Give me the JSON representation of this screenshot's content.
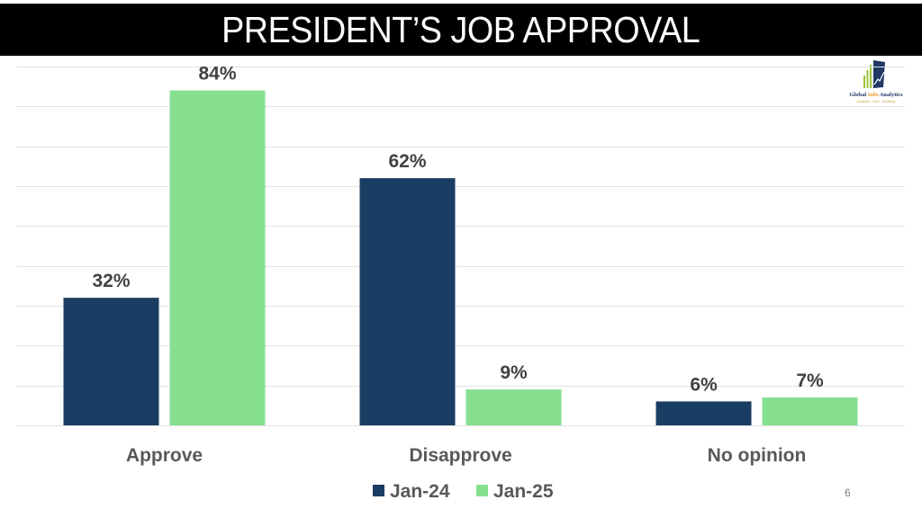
{
  "header": {
    "title": "PRESIDENT’S JOB APPROVAL"
  },
  "logo": {
    "brand_part1": "Global ",
    "brand_highlight": "Info",
    "brand_part2": " Analytics",
    "tagline": "Analytics · Polls · Modeling",
    "icon": "bar-chart-arrow-logo-icon"
  },
  "page_number": "6",
  "colors": {
    "jan24": "#1a3d63",
    "jan25": "#86e090",
    "grid": "#e3e3e3"
  },
  "chart_data": {
    "type": "bar",
    "title": "PRESIDENT’S JOB APPROVAL",
    "categories": [
      "Approve",
      "Disapprove",
      "No opinion"
    ],
    "series": [
      {
        "name": "Jan-24",
        "values": [
          32,
          62,
          6
        ],
        "labels": [
          "32%",
          "62%",
          "6%"
        ]
      },
      {
        "name": "Jan-25",
        "values": [
          84,
          9,
          7
        ],
        "labels": [
          "84%",
          "9%",
          "7%"
        ]
      }
    ],
    "xlabel": "",
    "ylabel": "",
    "ylim": [
      0,
      90
    ],
    "y_unit": "%",
    "grid": true,
    "gridline_step": 10,
    "y_tick_labels_shown": false,
    "legend_position": "bottom-center"
  }
}
